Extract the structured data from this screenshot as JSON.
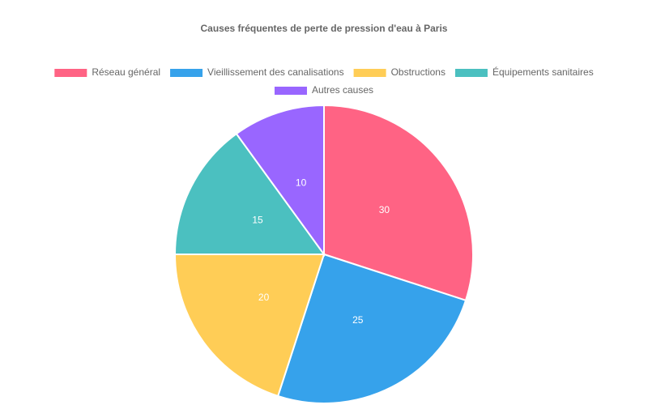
{
  "chart_data": {
    "type": "pie",
    "title": "Causes fréquentes de perte de pression d'eau à Paris",
    "categories": [
      "Réseau général",
      "Vieillissement des canalisations",
      "Obstructions",
      "Équipements sanitaires",
      "Autres causes"
    ],
    "values": [
      30,
      25,
      20,
      15,
      10
    ],
    "colors": [
      "#ff6384",
      "#36a2eb",
      "#ffcd56",
      "#4bc0c0",
      "#9966ff"
    ],
    "legend": "top"
  }
}
